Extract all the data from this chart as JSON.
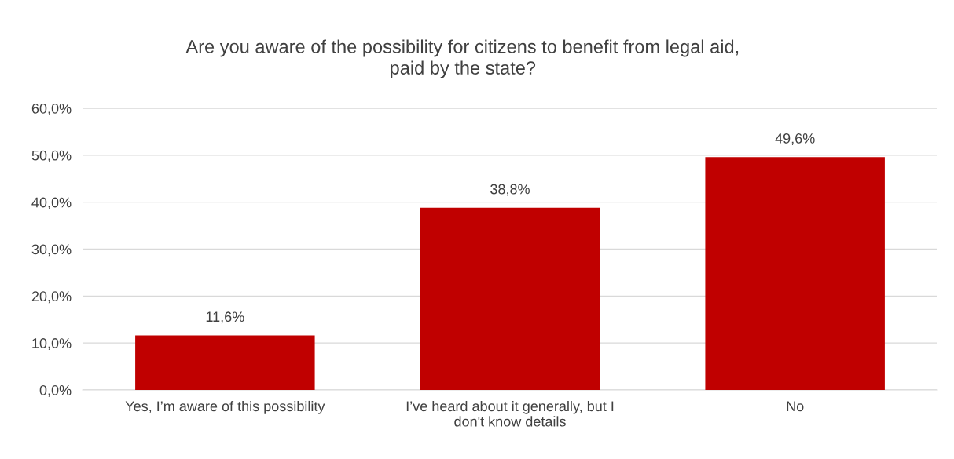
{
  "chart_data": {
    "type": "bar",
    "title": "Are you aware of the possibility for citizens to benefit from legal aid,\npaid by the state?",
    "categories": [
      "Yes, I’m aware of this possibility",
      "I’ve heard about it generally, but I\ndon't know details",
      "No"
    ],
    "values": [
      11.6,
      38.8,
      49.6
    ],
    "color": "#c00000",
    "value_labels": [
      "11,6%",
      "38,8%",
      "49,6%"
    ],
    "ylim": [
      0,
      60
    ],
    "yticks": [
      {
        "value": 0,
        "label": "0,0%"
      },
      {
        "value": 10,
        "label": "10,0%"
      },
      {
        "value": 20,
        "label": "20,0%"
      },
      {
        "value": 30,
        "label": "30,0%"
      },
      {
        "value": 40,
        "label": "40,0%"
      },
      {
        "value": 50,
        "label": "50,0%"
      },
      {
        "value": 60,
        "label": "60,0%"
      }
    ],
    "grid": "y",
    "legend": false
  }
}
